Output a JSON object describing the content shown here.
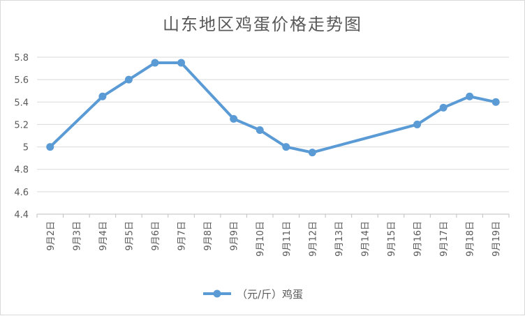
{
  "chart_data": {
    "type": "line",
    "title": "山东地区鸡蛋价格走势图",
    "categories": [
      "9月2日",
      "9月3日",
      "9月4日",
      "9月5日",
      "9月6日",
      "9月7日",
      "9月8日",
      "9月9日",
      "9月10日",
      "9月11日",
      "9月12日",
      "9月13日",
      "9月14日",
      "9月15日",
      "9月16日",
      "9月17日",
      "9月18日",
      "9月19日"
    ],
    "series": [
      {
        "name": "（元/斤）鸡蛋",
        "color": "#5b9bd5",
        "values": [
          5.0,
          null,
          5.45,
          5.6,
          5.75,
          5.75,
          null,
          5.25,
          5.15,
          5.0,
          4.95,
          null,
          null,
          null,
          5.2,
          5.35,
          5.45,
          5.4
        ]
      }
    ],
    "ylim": [
      4.4,
      5.8
    ],
    "yticks": [
      "4.4",
      "4.6",
      "4.8",
      "5",
      "5.2",
      "5.4",
      "5.6",
      "5.8"
    ],
    "grid": true,
    "legend_position": "bottom"
  }
}
